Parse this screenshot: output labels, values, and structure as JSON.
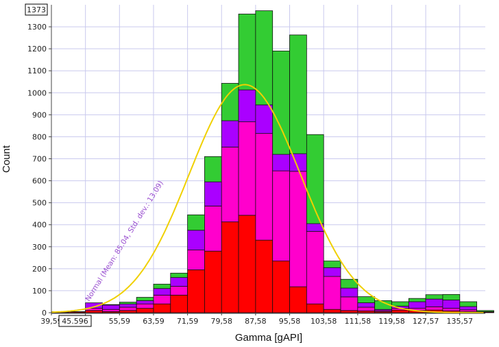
{
  "chart_data": {
    "type": "bar",
    "stacked": true,
    "xlabel": "Gamma [gAPI]",
    "ylabel": "Count",
    "ylim": [
      0,
      1400
    ],
    "xlim": [
      39.59,
      141.57
    ],
    "y_ticks": [
      0,
      100,
      200,
      300,
      400,
      500,
      600,
      700,
      800,
      900,
      1000,
      1100,
      1200,
      1300
    ],
    "x_tick_values": [
      39.59,
      47.59,
      55.59,
      63.59,
      71.59,
      79.58,
      87.58,
      95.58,
      103.58,
      111.58,
      119.58,
      127.57,
      135.57
    ],
    "x_tick_labels": [
      "39,59",
      "47,59",
      "55,59",
      "63,59",
      "71,59",
      "79,58",
      "87,58",
      "95,58",
      "103,58",
      "111,58",
      "119,58",
      "127,57",
      "135,57"
    ],
    "max_readout": "1373",
    "cursor_readout": "45.596",
    "bin_starts": [
      39.59,
      43.59,
      47.59,
      51.59,
      55.59,
      59.59,
      63.59,
      67.59,
      71.59,
      75.59,
      79.58,
      83.58,
      87.58,
      91.58,
      95.58,
      99.58,
      103.58,
      107.58,
      111.58,
      115.58,
      119.58,
      123.58,
      127.57,
      131.57,
      135.57,
      139.57
    ],
    "bin_width": 3.9992,
    "series": [
      {
        "color": "#ff0000",
        "values": [
          3,
          4,
          10,
          5,
          10,
          20,
          40,
          80,
          195,
          280,
          413,
          443,
          330,
          235,
          118,
          40,
          15,
          10,
          8,
          5,
          12,
          10,
          12,
          8,
          5,
          3
        ]
      },
      {
        "color": "#ff00cc",
        "values": [
          1,
          1,
          10,
          10,
          15,
          20,
          40,
          40,
          90,
          205,
          340,
          425,
          485,
          410,
          525,
          330,
          150,
          62,
          17,
          5,
          8,
          10,
          15,
          12,
          8,
          1
        ]
      },
      {
        "color": "#aa00ff",
        "values": [
          0,
          0,
          25,
          20,
          15,
          15,
          30,
          40,
          90,
          110,
          120,
          145,
          130,
          75,
          80,
          35,
          40,
          40,
          20,
          5,
          10,
          30,
          35,
          38,
          15,
          1
        ]
      },
      {
        "color": "#33cc33",
        "values": [
          1,
          0,
          0,
          2,
          8,
          15,
          20,
          20,
          70,
          115,
          170,
          345,
          428,
          470,
          540,
          405,
          30,
          40,
          28,
          40,
          20,
          15,
          20,
          25,
          22,
          5
        ]
      }
    ],
    "normal_curve": {
      "label": "Normal (Mean: 85.04, Std. dev.: 13.09)",
      "mean": 85.04,
      "std": 13.09,
      "peak": 1037,
      "color": "#f0d000"
    }
  }
}
